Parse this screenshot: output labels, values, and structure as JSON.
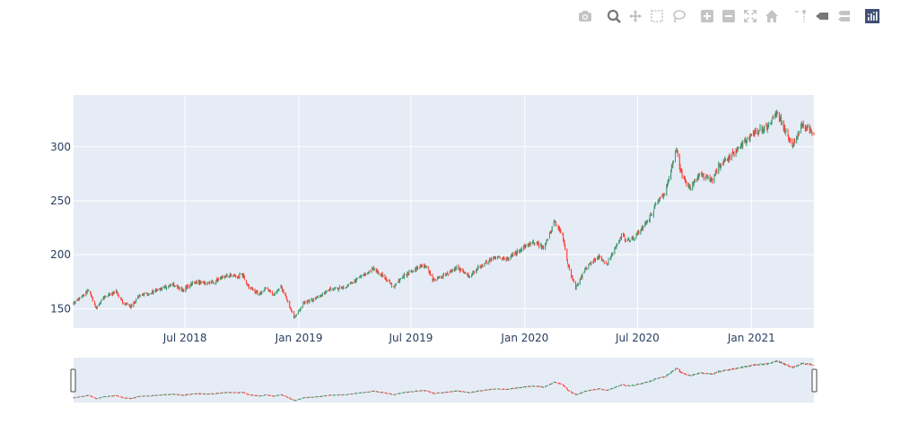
{
  "modebar": {
    "buttons": [
      {
        "name": "camera-icon",
        "title": "Download plot as a png"
      },
      {
        "name": "zoom-icon",
        "title": "Zoom",
        "active": true
      },
      {
        "name": "pan-icon",
        "title": "Pan"
      },
      {
        "name": "box-select-icon",
        "title": "Box Select"
      },
      {
        "name": "lasso-select-icon",
        "title": "Lasso Select"
      },
      {
        "name": "zoom-in-icon",
        "title": "Zoom in"
      },
      {
        "name": "zoom-out-icon",
        "title": "Zoom out"
      },
      {
        "name": "autoscale-icon",
        "title": "Autoscale"
      },
      {
        "name": "reset-axes-icon",
        "title": "Reset axes"
      },
      {
        "name": "spike-lines-icon",
        "title": "Toggle Spike Lines"
      },
      {
        "name": "hover-closest-icon",
        "title": "Show closest data on hover"
      },
      {
        "name": "hover-compare-icon",
        "title": "Compare data on hover"
      },
      {
        "name": "plotly-logo-icon",
        "title": "Produced with Plotly"
      }
    ]
  },
  "colors": {
    "plot_bg": "#e5ecf6",
    "grid": "#ffffff",
    "increasing": "#3d9970",
    "decreasing": "#ff4136",
    "tick_text": "#2a3f5f",
    "modebar_icon": "#c4c4c4",
    "modebar_active": "#777777",
    "plotly_logo": "#3f4f75"
  },
  "chart_data": {
    "type": "candlestick",
    "title": "",
    "xlabel": "",
    "ylabel": "",
    "xlim": [
      "2018-01-02",
      "2021-04-12"
    ],
    "ylim": [
      132,
      348
    ],
    "x_ticks": [
      {
        "date": "2018-07-01",
        "label": "Jul 2018"
      },
      {
        "date": "2019-01-01",
        "label": "Jan 2019"
      },
      {
        "date": "2019-07-01",
        "label": "Jul 2019"
      },
      {
        "date": "2020-01-01",
        "label": "Jan 2020"
      },
      {
        "date": "2020-07-01",
        "label": "Jul 2020"
      },
      {
        "date": "2021-01-01",
        "label": "Jan 2021"
      }
    ],
    "y_ticks": [
      150,
      200,
      250,
      300
    ],
    "grid": true,
    "legend": "none",
    "rangeslider": true,
    "price_path": [
      [
        "2018-01-02",
        155
      ],
      [
        "2018-01-12",
        160
      ],
      [
        "2018-01-26",
        167
      ],
      [
        "2018-02-08",
        150
      ],
      [
        "2018-02-20",
        160
      ],
      [
        "2018-03-12",
        166
      ],
      [
        "2018-03-23",
        155
      ],
      [
        "2018-04-06",
        152
      ],
      [
        "2018-04-18",
        162
      ],
      [
        "2018-05-10",
        166
      ],
      [
        "2018-06-12",
        172
      ],
      [
        "2018-06-28",
        167
      ],
      [
        "2018-07-16",
        175
      ],
      [
        "2018-08-15",
        174
      ],
      [
        "2018-09-05",
        181
      ],
      [
        "2018-09-20",
        180
      ],
      [
        "2018-10-03",
        181
      ],
      [
        "2018-10-12",
        170
      ],
      [
        "2018-10-29",
        163
      ],
      [
        "2018-11-08",
        169
      ],
      [
        "2018-11-20",
        163
      ],
      [
        "2018-12-03",
        170
      ],
      [
        "2018-12-14",
        157
      ],
      [
        "2018-12-24",
        142
      ],
      [
        "2019-01-10",
        156
      ],
      [
        "2019-01-30",
        160
      ],
      [
        "2019-02-20",
        168
      ],
      [
        "2019-03-15",
        170
      ],
      [
        "2019-04-05",
        177
      ],
      [
        "2019-04-30",
        187
      ],
      [
        "2019-05-15",
        181
      ],
      [
        "2019-06-03",
        170
      ],
      [
        "2019-06-20",
        181
      ],
      [
        "2019-07-12",
        188
      ],
      [
        "2019-07-26",
        190
      ],
      [
        "2019-08-05",
        177
      ],
      [
        "2019-08-23",
        180
      ],
      [
        "2019-09-12",
        188
      ],
      [
        "2019-10-02",
        180
      ],
      [
        "2019-10-18",
        188
      ],
      [
        "2019-11-15",
        198
      ],
      [
        "2019-12-03",
        196
      ],
      [
        "2019-12-31",
        207
      ],
      [
        "2020-01-17",
        212
      ],
      [
        "2020-01-31",
        206
      ],
      [
        "2020-02-19",
        231
      ],
      [
        "2020-03-02",
        218
      ],
      [
        "2020-03-11",
        190
      ],
      [
        "2020-03-23",
        168
      ],
      [
        "2020-04-08",
        188
      ],
      [
        "2020-04-30",
        198
      ],
      [
        "2020-05-13",
        192
      ],
      [
        "2020-06-08",
        220
      ],
      [
        "2020-06-11",
        212
      ],
      [
        "2020-06-26",
        216
      ],
      [
        "2020-07-21",
        235
      ],
      [
        "2020-08-06",
        254
      ],
      [
        "2020-08-14",
        257
      ],
      [
        "2020-09-02",
        298
      ],
      [
        "2020-09-11",
        272
      ],
      [
        "2020-09-23",
        263
      ],
      [
        "2020-10-12",
        275
      ],
      [
        "2020-10-30",
        268
      ],
      [
        "2020-11-09",
        282
      ],
      [
        "2020-11-30",
        292
      ],
      [
        "2020-12-18",
        303
      ],
      [
        "2021-01-08",
        314
      ],
      [
        "2021-01-27",
        318
      ],
      [
        "2021-02-12",
        332
      ],
      [
        "2021-02-25",
        314
      ],
      [
        "2021-03-08",
        300
      ],
      [
        "2021-03-23",
        320
      ],
      [
        "2021-04-12",
        314
      ]
    ],
    "rangeslider_ylim": [
      132,
      348
    ]
  }
}
